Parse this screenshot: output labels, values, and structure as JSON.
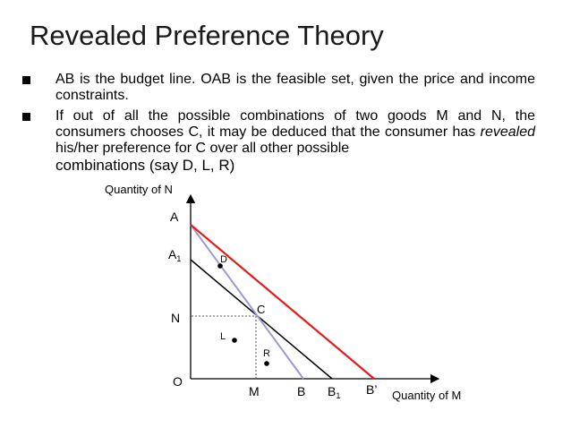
{
  "slide": {
    "title": "Revealed Preference Theory",
    "bullets": [
      {
        "text": "AB is the budget line. OAB is the feasible set, given the price and income constraints."
      },
      {
        "text_part1": "If out of all the possible combinations of two goods M and N, the consumers chooses C, it may be deduced that the consumer has",
        "text_italic": "revealed",
        "text_part2": "his/her preference for C over all other possible",
        "text_part3": "combinations (say D, L, R)"
      }
    ]
  },
  "diagram": {
    "y_axis_label": "Quantity of N",
    "x_axis_label": "Quantity of M",
    "origin_label": "O",
    "y_labels": {
      "A": "A",
      "A1": "A",
      "A1_sub": "1",
      "N": "N"
    },
    "x_labels": {
      "M": "M",
      "B": "B",
      "B1": "B",
      "B1_sub": "1",
      "Bprime": "B’"
    },
    "point_labels": {
      "C": "C",
      "D": "D",
      "L": "L",
      "R": "R"
    },
    "colors": {
      "axis": "#000000",
      "budget_AB": "#9b9bcf",
      "budget_A1B1": "#000000",
      "budget_ABprime": "#e31b1b",
      "dashed": "#555555",
      "point": "#000000"
    }
  }
}
